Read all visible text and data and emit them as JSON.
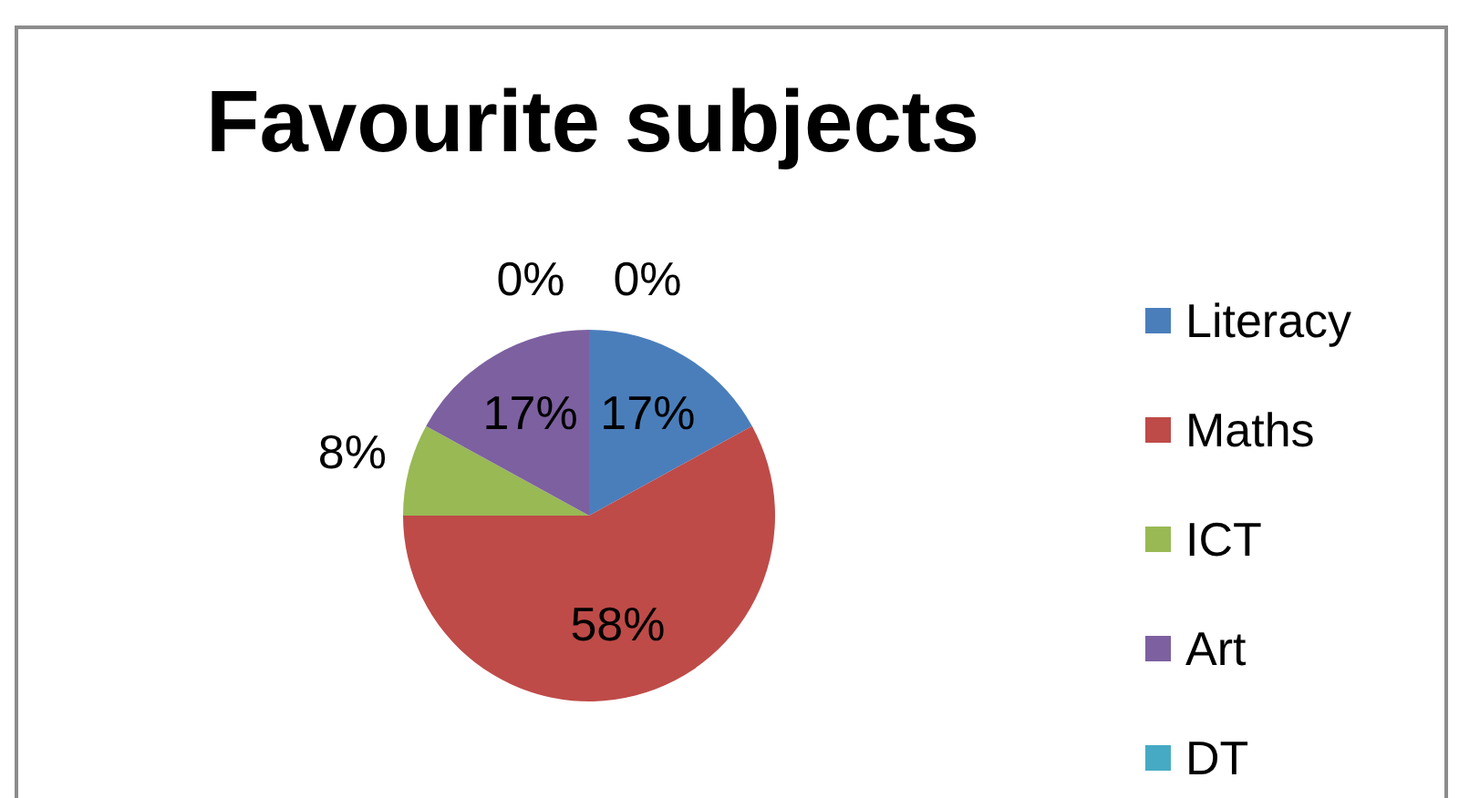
{
  "chart_data": {
    "type": "pie",
    "title": "Favourite subjects",
    "categories": [
      "Literacy",
      "Maths",
      "ICT",
      "Art",
      "DT",
      null
    ],
    "values": [
      17,
      58,
      8,
      17,
      0,
      0
    ],
    "colors": [
      "#4a7ebb",
      "#be4b48",
      "#98b954",
      "#7d60a0",
      "#46aac5",
      "#f79646"
    ],
    "value_labels": [
      "17%",
      "58%",
      "8%",
      "17%",
      "0%",
      "0%"
    ],
    "legend": "right"
  }
}
